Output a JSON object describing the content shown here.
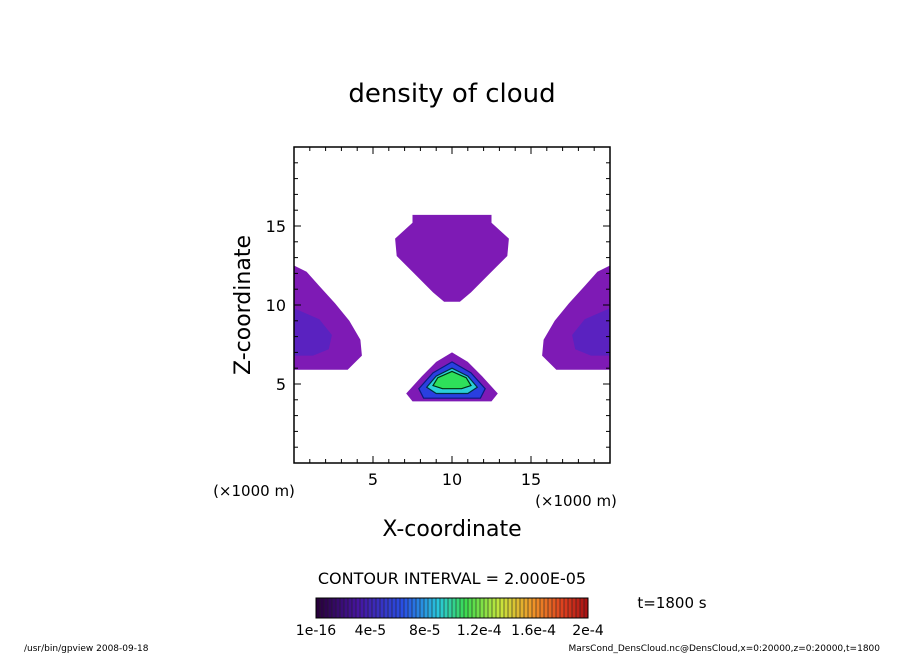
{
  "chart_data": {
    "type": "contour",
    "title": "density of cloud",
    "xlabel": "X-coordinate",
    "ylabel": "Z-coordinate",
    "x_unit": "(×1000 m)",
    "y_unit": "(×1000 m)",
    "xlim": [
      0,
      20
    ],
    "ylim": [
      0,
      20
    ],
    "x_ticks": [
      5,
      10,
      15
    ],
    "y_ticks": [
      5,
      10,
      15
    ],
    "contour_interval_label": "CONTOUR INTERVAL = 2.000E-05",
    "time_label": "t=1800 s",
    "colorbar_ticks": [
      "1e-16",
      "4e-5",
      "8e-5",
      "1.2e-4",
      "1.6e-4",
      "2e-4"
    ],
    "regions": [
      {
        "name": "top",
        "color": "#7e1ab5",
        "polygon": [
          [
            7.5,
            15.7
          ],
          [
            12.5,
            15.7
          ],
          [
            12.5,
            15.2
          ],
          [
            13.6,
            14.2
          ],
          [
            13.5,
            13.1
          ],
          [
            12.4,
            12.0
          ],
          [
            11.2,
            10.8
          ],
          [
            10.5,
            10.2
          ],
          [
            9.5,
            10.2
          ],
          [
            8.8,
            10.8
          ],
          [
            7.6,
            12.0
          ],
          [
            6.5,
            13.1
          ],
          [
            6.4,
            14.2
          ],
          [
            7.5,
            15.2
          ]
        ]
      },
      {
        "name": "left",
        "color": "#7e1ab5",
        "polygon": [
          [
            0,
            12.5
          ],
          [
            0.8,
            12.1
          ],
          [
            1.6,
            11.2
          ],
          [
            2.6,
            10.1
          ],
          [
            3.5,
            9.0
          ],
          [
            4.2,
            7.8
          ],
          [
            4.3,
            6.8
          ],
          [
            3.4,
            5.9
          ],
          [
            0,
            5.9
          ]
        ]
      },
      {
        "name": "left-core",
        "color": "#5a22c0",
        "polygon": [
          [
            0,
            9.8
          ],
          [
            1.6,
            9.1
          ],
          [
            2.4,
            8.1
          ],
          [
            2.2,
            7.2
          ],
          [
            1.2,
            6.8
          ],
          [
            0,
            6.8
          ]
        ]
      },
      {
        "name": "right",
        "color": "#7e1ab5",
        "polygon": [
          [
            20,
            12.5
          ],
          [
            19.2,
            12.1
          ],
          [
            18.4,
            11.2
          ],
          [
            17.4,
            10.1
          ],
          [
            16.5,
            9.0
          ],
          [
            15.8,
            7.8
          ],
          [
            15.7,
            6.8
          ],
          [
            16.6,
            5.9
          ],
          [
            20,
            5.9
          ]
        ]
      },
      {
        "name": "right-core",
        "color": "#5a22c0",
        "polygon": [
          [
            20,
            9.8
          ],
          [
            18.4,
            9.1
          ],
          [
            17.6,
            8.1
          ],
          [
            17.8,
            7.2
          ],
          [
            18.8,
            6.8
          ],
          [
            20,
            6.8
          ]
        ]
      },
      {
        "name": "bottom",
        "color": "#7e1ab5",
        "polygon": [
          [
            10.0,
            7.0
          ],
          [
            11.0,
            6.4
          ],
          [
            11.9,
            5.5
          ],
          [
            12.9,
            4.4
          ],
          [
            12.5,
            3.9
          ],
          [
            7.5,
            3.9
          ],
          [
            7.1,
            4.4
          ],
          [
            8.1,
            5.5
          ],
          [
            9.0,
            6.4
          ]
        ]
      },
      {
        "name": "bottom-blue",
        "color": "#2a3fe0",
        "polygon": [
          [
            10.0,
            6.4
          ],
          [
            11.2,
            5.7
          ],
          [
            12.1,
            4.7
          ],
          [
            11.8,
            4.1
          ],
          [
            8.2,
            4.1
          ],
          [
            7.9,
            4.7
          ],
          [
            8.8,
            5.7
          ]
        ]
      },
      {
        "name": "bottom-cyan",
        "color": "#2ad0d8",
        "polygon": [
          [
            10.0,
            6.0
          ],
          [
            11.0,
            5.5
          ],
          [
            11.6,
            4.8
          ],
          [
            11.0,
            4.4
          ],
          [
            9.0,
            4.4
          ],
          [
            8.4,
            4.8
          ],
          [
            9.0,
            5.5
          ]
        ]
      },
      {
        "name": "bottom-green",
        "color": "#2ee05a",
        "polygon": [
          [
            10.0,
            5.8
          ],
          [
            10.9,
            5.4
          ],
          [
            11.2,
            4.9
          ],
          [
            10.6,
            4.7
          ],
          [
            9.4,
            4.7
          ],
          [
            8.8,
            4.9
          ],
          [
            9.1,
            5.4
          ]
        ]
      }
    ]
  },
  "footer": {
    "left": "/usr/bin/gpview   2008-09-18",
    "right": "MarsCond_DensCloud.nc@DensCloud,x=0:20000,z=0:20000,t=1800"
  }
}
